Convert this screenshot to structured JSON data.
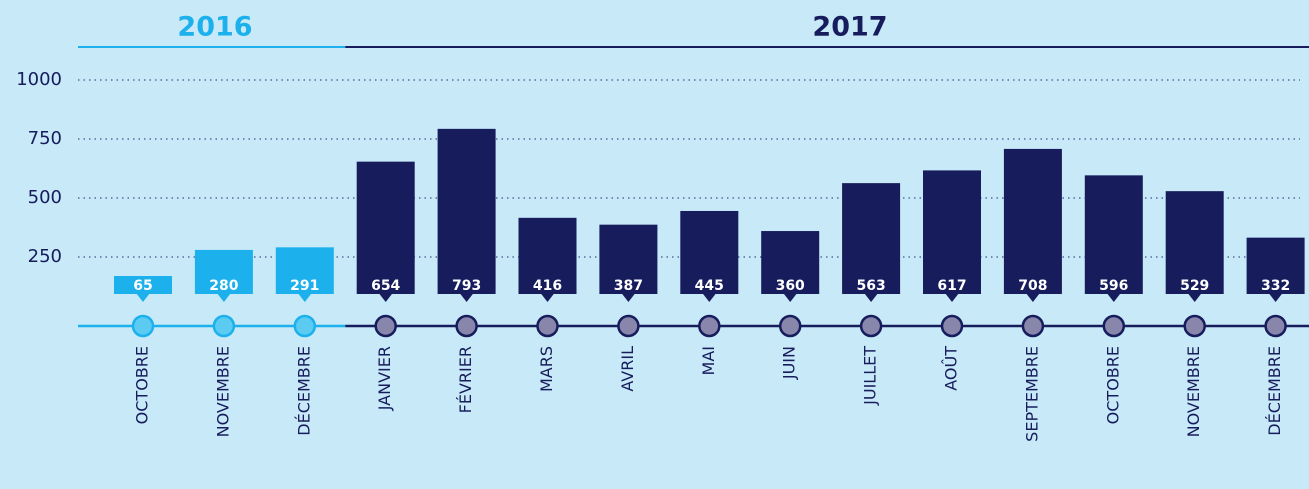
{
  "chart_data": {
    "type": "bar",
    "ylim": [
      0,
      1000
    ],
    "yticks": [
      250,
      500,
      750,
      1000
    ],
    "grid": true,
    "groups": [
      {
        "name": "2016",
        "color": "#1cb1ec",
        "marker_color": "#5ccbf2",
        "categories": [
          "OCTOBRE",
          "NOVEMBRE",
          "DÉCEMBRE"
        ],
        "values": [
          65,
          280,
          291
        ]
      },
      {
        "name": "2017",
        "color": "#171c5c",
        "marker_color": "#8986ac",
        "categories": [
          "JANVIER",
          "FÉVRIER",
          "MARS",
          "AVRIL",
          "MAI",
          "JUIN",
          "JUILLET",
          "AOÛT",
          "SEPTEMBRE",
          "OCTOBRE",
          "NOVEMBRE",
          "DÉCEMBRE"
        ],
        "values": [
          654,
          793,
          416,
          387,
          445,
          360,
          563,
          617,
          708,
          596,
          529,
          332
        ]
      }
    ]
  }
}
